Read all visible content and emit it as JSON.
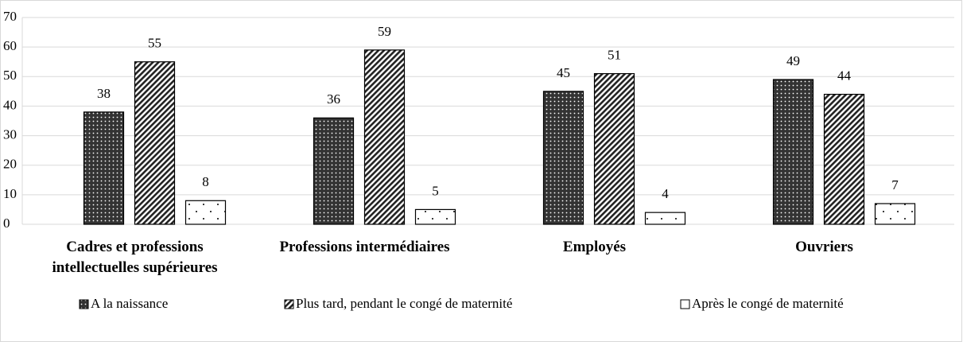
{
  "chart_data": {
    "type": "bar",
    "categories": [
      "Cadres et professions intellectuelles supérieures",
      "Professions intermédiaires",
      "Employés",
      "Ouvriers"
    ],
    "series": [
      {
        "name": "A la naissance",
        "values": [
          38,
          36,
          45,
          49
        ]
      },
      {
        "name": "Plus tard, pendant le congé de maternité",
        "values": [
          55,
          59,
          51,
          44
        ]
      },
      {
        "name": "Après le congé de maternité",
        "values": [
          8,
          5,
          4,
          7
        ]
      }
    ],
    "ylim": [
      0,
      70
    ],
    "yticks": [
      0,
      10,
      20,
      30,
      40,
      50,
      60,
      70
    ],
    "grid": true,
    "legend": "bottom"
  }
}
